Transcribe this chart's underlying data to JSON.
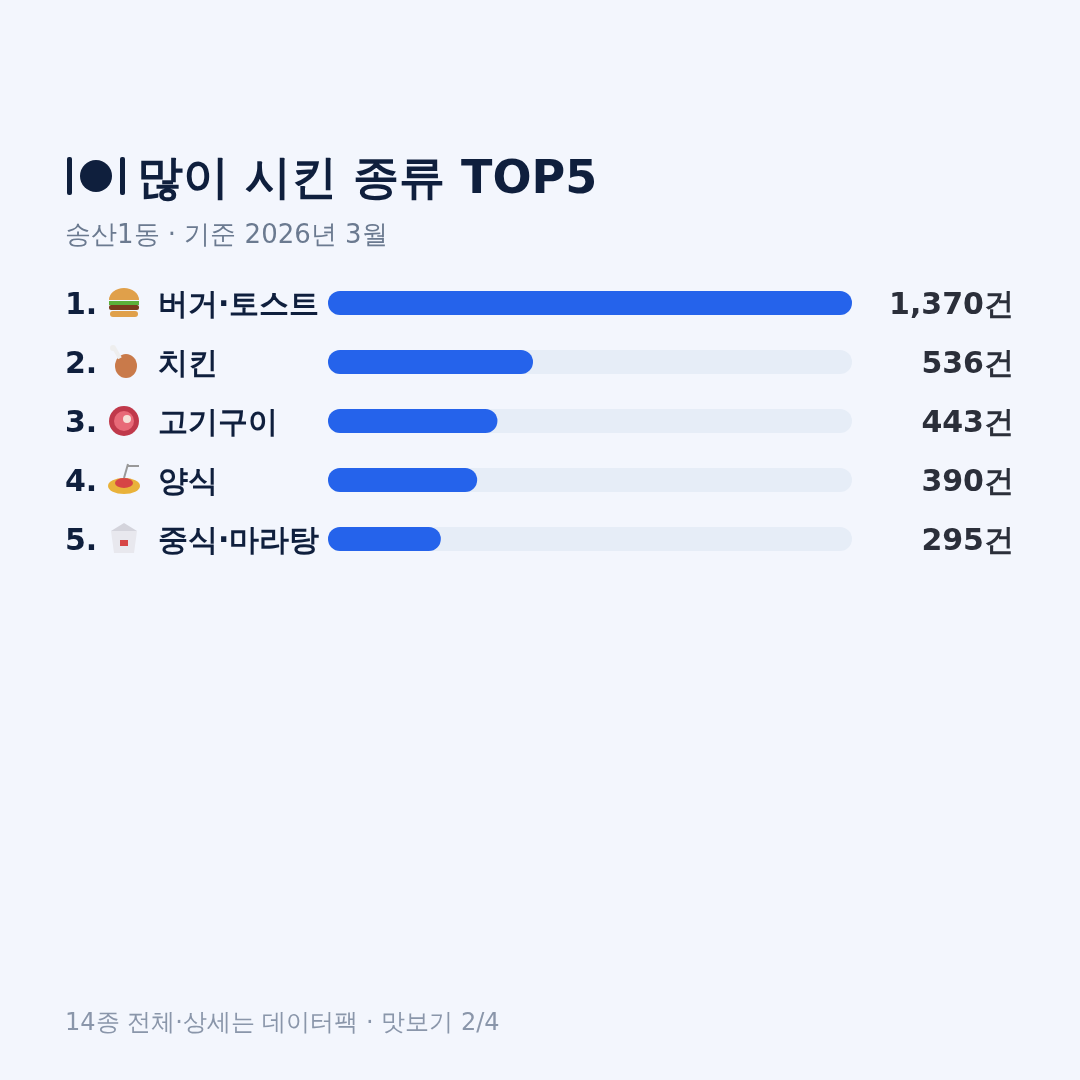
{
  "chart_data": {
    "type": "bar",
    "orientation": "horizontal",
    "title": "많이 시킨 종류 TOP5",
    "subtitle": "송산1동 · 기준 2026년 3월",
    "categories": [
      "1. 버거·토스트",
      "2. 치킨",
      "3. 고기구이",
      "4. 양식",
      "5. 중식·마라탕"
    ],
    "values": [
      1370,
      536,
      443,
      390,
      295
    ],
    "value_labels": [
      "1,370건",
      "536건",
      "443건",
      "390건",
      "295건"
    ],
    "color": "#2563eb",
    "annotations": [
      "14종 전체·상세는 데이터팩 · 맛보기 2/4"
    ]
  }
}
